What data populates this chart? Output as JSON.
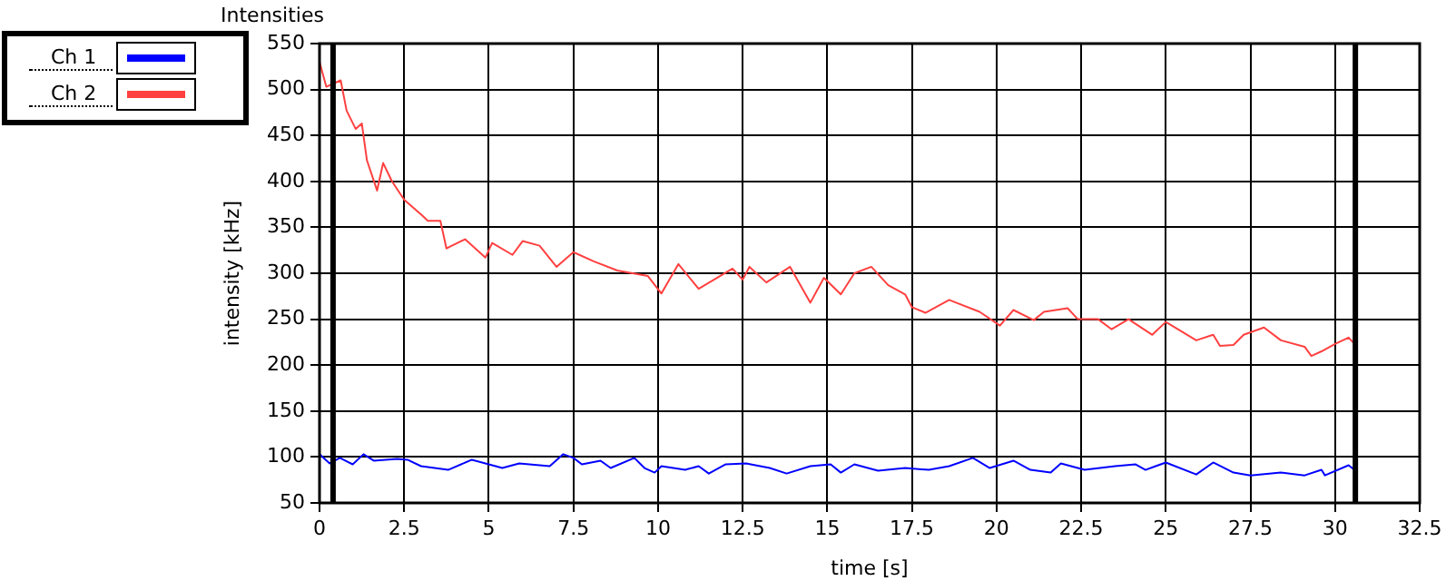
{
  "chart_data": {
    "type": "line",
    "title": "Intensities",
    "xlabel": "time [s]",
    "ylabel": "intensity [kHz]",
    "xlim": [
      0,
      32.5
    ],
    "xticks": [
      0,
      2.5,
      5,
      7.5,
      10,
      12.5,
      15,
      17.5,
      20,
      22.5,
      25,
      27.5,
      30,
      32.5
    ],
    "ylim": [
      50,
      550
    ],
    "yticks": [
      50,
      100,
      150,
      200,
      250,
      300,
      350,
      400,
      450,
      500,
      550
    ],
    "grid": true,
    "legend": "top left",
    "marker": "none",
    "line_style": "solid",
    "ref_lines": [
      {
        "axis": "x",
        "value": 0.4,
        "color": "#000000"
      },
      {
        "axis": "x",
        "value": 30.6,
        "color": "#000000"
      }
    ],
    "series": [
      {
        "name": "Ch 1",
        "color": "#0000ff",
        "x": [
          0,
          0.3,
          0.6,
          0.98,
          1.3,
          1.6,
          2.3,
          2.6,
          3.0,
          3.8,
          4.5,
          5.0,
          5.4,
          5.9,
          6.8,
          7.2,
          7.5,
          7.75,
          8.3,
          8.6,
          9.3,
          9.6,
          9.9,
          10.1,
          10.8,
          11.2,
          11.5,
          12.0,
          12.6,
          13.3,
          13.8,
          14.5,
          15.1,
          15.4,
          15.8,
          16.5,
          17.3,
          18.0,
          18.6,
          19.3,
          19.8,
          20.5,
          21.0,
          21.6,
          21.9,
          22.6,
          23.5,
          24.1,
          24.4,
          25.0,
          25.9,
          26.4,
          27.0,
          27.5,
          28.4,
          29.1,
          29.6,
          29.7,
          30.4,
          30.6
        ],
        "values": [
          103,
          93,
          99,
          92,
          103,
          96,
          98,
          97,
          90,
          86,
          97,
          92,
          88,
          93,
          90,
          103,
          99,
          92,
          96,
          88,
          99,
          88,
          83,
          90,
          86,
          90,
          82,
          92,
          93,
          88,
          82,
          90,
          92,
          83,
          92,
          85,
          88,
          86,
          90,
          99,
          88,
          96,
          86,
          83,
          93,
          86,
          90,
          92,
          86,
          94,
          81,
          94,
          83,
          80,
          83,
          80,
          86,
          80,
          91,
          85
        ]
      },
      {
        "name": "Ch 2",
        "color": "#ff4040",
        "x": [
          0,
          0.2,
          0.625,
          0.8,
          1.07,
          1.25,
          1.4,
          1.7,
          1.88,
          2.14,
          2.5,
          3.03,
          3.2,
          3.57,
          3.75,
          4.3,
          4.9,
          5.1,
          5.7,
          6.0,
          6.5,
          7.0,
          7.5,
          8.1,
          8.8,
          9.7,
          10.1,
          10.6,
          11.2,
          12.2,
          12.5,
          12.7,
          13.2,
          13.9,
          14.5,
          14.9,
          15.4,
          15.8,
          16.3,
          16.8,
          17.3,
          17.5,
          17.9,
          18.6,
          19.5,
          20.1,
          20.5,
          21.1,
          21.4,
          22.1,
          22.4,
          23.0,
          23.4,
          23.9,
          24.6,
          25.0,
          25.9,
          26.4,
          26.6,
          27.0,
          27.3,
          27.9,
          28.4,
          29.1,
          29.3,
          29.6,
          30.0,
          30.4,
          30.6
        ],
        "values": [
          530,
          503,
          510,
          477,
          457,
          463,
          423,
          390,
          420,
          400,
          380,
          363,
          357,
          357,
          327,
          337,
          317,
          333,
          320,
          335,
          330,
          307,
          323,
          313,
          303,
          297,
          278,
          310,
          283,
          305,
          293,
          307,
          290,
          307,
          268,
          295,
          277,
          300,
          307,
          287,
          277,
          263,
          257,
          271,
          258,
          243,
          260,
          249,
          258,
          262,
          250,
          250,
          239,
          250,
          233,
          247,
          227,
          233,
          221,
          222,
          233,
          241,
          227,
          220,
          210,
          215,
          223,
          230,
          222
        ]
      }
    ]
  }
}
